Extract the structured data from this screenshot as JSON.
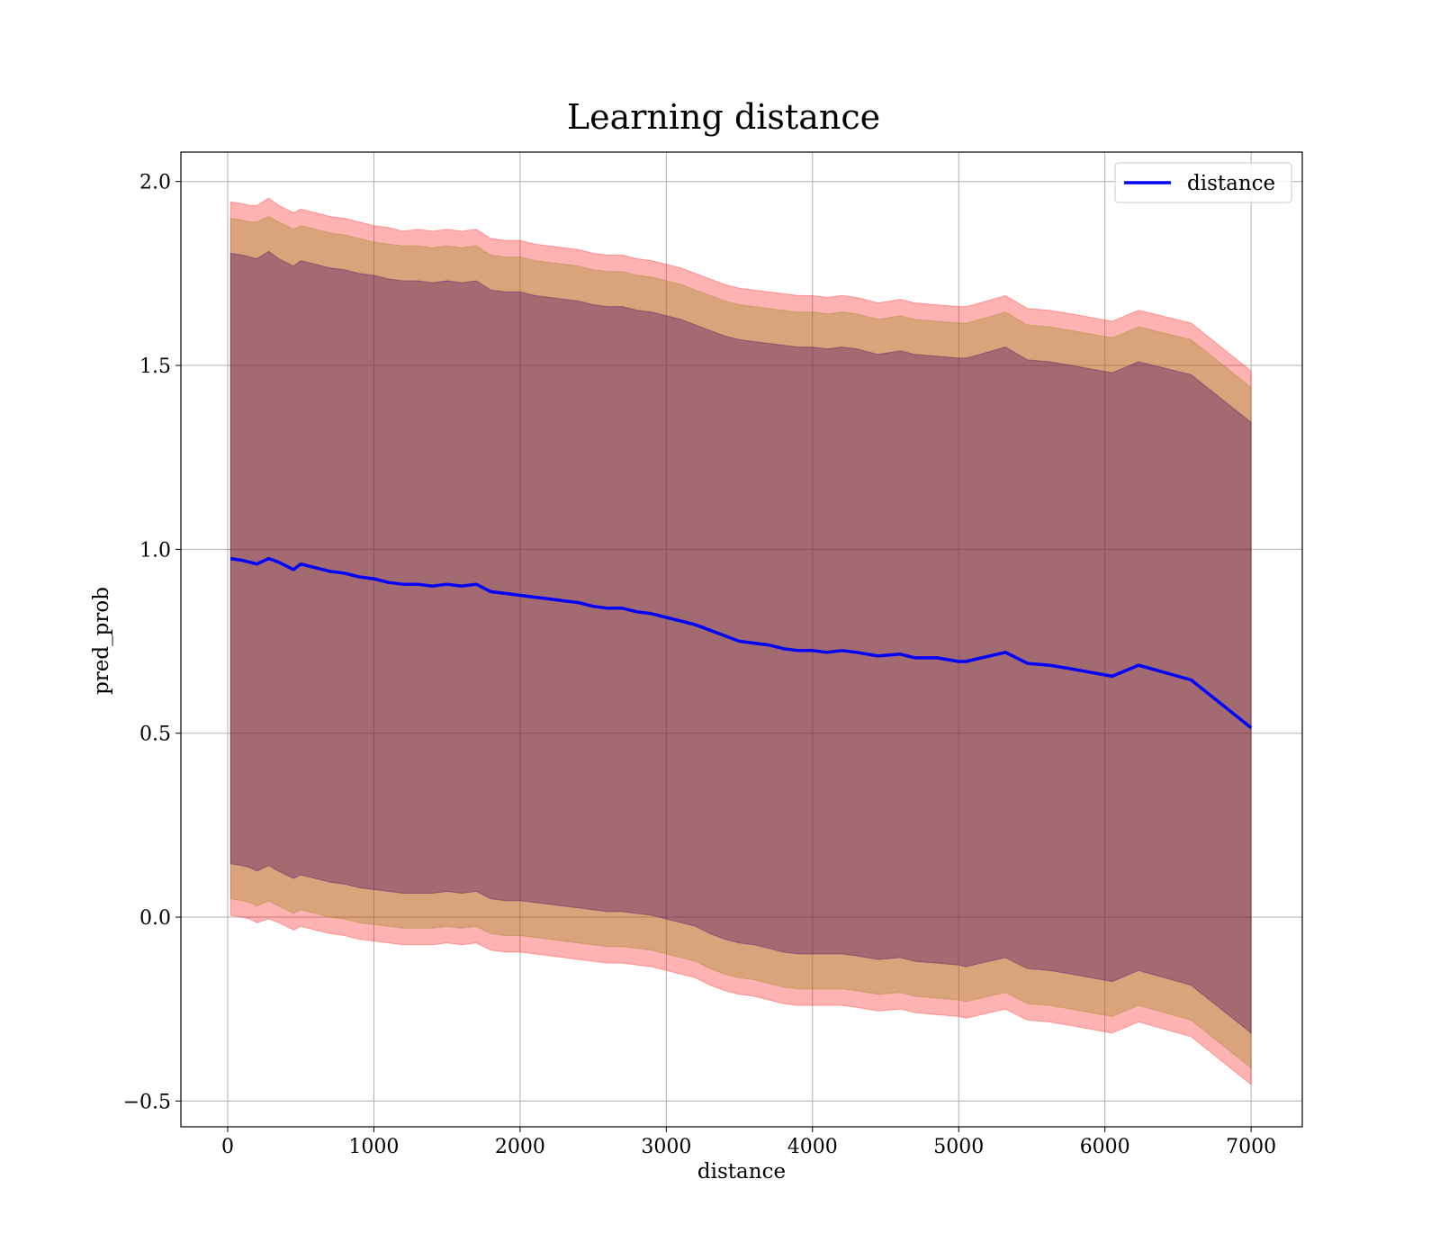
{
  "chart_data": {
    "type": "line",
    "title": "Learning distance",
    "xlabel": "distance",
    "ylabel": "pred_prob",
    "xlim": [
      -320,
      7350
    ],
    "ylim": [
      -0.57,
      2.08
    ],
    "xticks": [
      0,
      1000,
      2000,
      3000,
      4000,
      5000,
      6000,
      7000
    ],
    "xtick_labels": [
      "0",
      "1000",
      "2000",
      "3000",
      "4000",
      "5000",
      "6000",
      "7000"
    ],
    "yticks": [
      -0.5,
      0.0,
      0.5,
      1.0,
      1.5,
      2.0
    ],
    "ytick_labels": [
      "−0.5",
      "0.0",
      "0.5",
      "1.0",
      "1.5",
      "2.0"
    ],
    "grid": true,
    "legend": {
      "position": "top-right",
      "entries": [
        "distance"
      ]
    },
    "x": [
      20,
      100,
      150,
      200,
      280,
      350,
      400,
      450,
      500,
      600,
      700,
      800,
      900,
      1000,
      1100,
      1200,
      1300,
      1400,
      1500,
      1600,
      1700,
      1800,
      1900,
      2000,
      2100,
      2200,
      2300,
      2400,
      2500,
      2600,
      2700,
      2800,
      2900,
      3000,
      3100,
      3200,
      3300,
      3400,
      3500,
      3600,
      3700,
      3800,
      3900,
      4000,
      4100,
      4200,
      4300,
      4450,
      4600,
      4700,
      4850,
      5000,
      5050,
      5100,
      5320,
      5470,
      5620,
      5770,
      6050,
      6230,
      6590,
      7000
    ],
    "series": [
      {
        "name": "distance",
        "color": "#0000ff",
        "values": [
          0.975,
          0.97,
          0.965,
          0.96,
          0.975,
          0.965,
          0.955,
          0.945,
          0.96,
          0.95,
          0.94,
          0.935,
          0.925,
          0.92,
          0.91,
          0.905,
          0.905,
          0.9,
          0.905,
          0.9,
          0.905,
          0.885,
          0.88,
          0.875,
          0.87,
          0.865,
          0.86,
          0.855,
          0.845,
          0.84,
          0.84,
          0.83,
          0.825,
          0.815,
          0.805,
          0.795,
          0.78,
          0.765,
          0.75,
          0.745,
          0.74,
          0.73,
          0.725,
          0.725,
          0.72,
          0.725,
          0.72,
          0.71,
          0.715,
          0.705,
          0.705,
          0.695,
          0.695,
          0.7,
          0.72,
          0.69,
          0.685,
          0.675,
          0.655,
          0.685,
          0.645,
          0.515
        ]
      }
    ],
    "bands": [
      {
        "name": "outer",
        "color": "#ff0000",
        "opacity": 0.3,
        "upper": [
          1.945,
          1.94,
          1.935,
          1.935,
          1.955,
          1.935,
          1.925,
          1.915,
          1.925,
          1.915,
          1.905,
          1.9,
          1.89,
          1.88,
          1.875,
          1.865,
          1.87,
          1.865,
          1.87,
          1.865,
          1.87,
          1.845,
          1.84,
          1.84,
          1.83,
          1.825,
          1.82,
          1.815,
          1.805,
          1.8,
          1.8,
          1.79,
          1.785,
          1.775,
          1.765,
          1.75,
          1.735,
          1.72,
          1.71,
          1.705,
          1.7,
          1.695,
          1.69,
          1.69,
          1.685,
          1.69,
          1.685,
          1.67,
          1.68,
          1.67,
          1.665,
          1.66,
          1.66,
          1.665,
          1.69,
          1.655,
          1.65,
          1.64,
          1.62,
          1.65,
          1.615,
          1.485
        ],
        "lower": [
          0.005,
          0.0,
          -0.005,
          -0.015,
          -0.005,
          -0.015,
          -0.025,
          -0.035,
          -0.025,
          -0.035,
          -0.045,
          -0.05,
          -0.06,
          -0.065,
          -0.07,
          -0.075,
          -0.075,
          -0.075,
          -0.07,
          -0.075,
          -0.07,
          -0.09,
          -0.095,
          -0.095,
          -0.1,
          -0.105,
          -0.11,
          -0.115,
          -0.12,
          -0.125,
          -0.125,
          -0.13,
          -0.135,
          -0.145,
          -0.155,
          -0.165,
          -0.185,
          -0.2,
          -0.21,
          -0.215,
          -0.225,
          -0.235,
          -0.24,
          -0.24,
          -0.24,
          -0.24,
          -0.245,
          -0.255,
          -0.25,
          -0.26,
          -0.265,
          -0.27,
          -0.275,
          -0.27,
          -0.25,
          -0.28,
          -0.285,
          -0.295,
          -0.315,
          -0.285,
          -0.325,
          -0.455
        ]
      },
      {
        "name": "middle",
        "color": "#808000",
        "opacity": 0.3,
        "upper": [
          1.9,
          1.895,
          1.89,
          1.89,
          1.905,
          1.89,
          1.88,
          1.87,
          1.88,
          1.87,
          1.86,
          1.855,
          1.845,
          1.835,
          1.83,
          1.825,
          1.825,
          1.82,
          1.825,
          1.82,
          1.825,
          1.8,
          1.795,
          1.795,
          1.785,
          1.78,
          1.775,
          1.77,
          1.76,
          1.755,
          1.755,
          1.745,
          1.74,
          1.73,
          1.72,
          1.705,
          1.69,
          1.675,
          1.665,
          1.66,
          1.655,
          1.65,
          1.645,
          1.645,
          1.64,
          1.645,
          1.64,
          1.625,
          1.635,
          1.625,
          1.62,
          1.615,
          1.615,
          1.62,
          1.645,
          1.61,
          1.605,
          1.595,
          1.575,
          1.605,
          1.57,
          1.44
        ],
        "lower": [
          0.05,
          0.045,
          0.04,
          0.03,
          0.045,
          0.03,
          0.02,
          0.01,
          0.02,
          0.01,
          0.0,
          -0.005,
          -0.015,
          -0.02,
          -0.025,
          -0.03,
          -0.03,
          -0.03,
          -0.025,
          -0.03,
          -0.025,
          -0.045,
          -0.05,
          -0.05,
          -0.055,
          -0.06,
          -0.065,
          -0.07,
          -0.075,
          -0.08,
          -0.08,
          -0.085,
          -0.09,
          -0.1,
          -0.11,
          -0.12,
          -0.14,
          -0.155,
          -0.165,
          -0.17,
          -0.18,
          -0.19,
          -0.195,
          -0.195,
          -0.195,
          -0.195,
          -0.2,
          -0.21,
          -0.205,
          -0.215,
          -0.22,
          -0.225,
          -0.23,
          -0.225,
          -0.205,
          -0.235,
          -0.24,
          -0.25,
          -0.27,
          -0.24,
          -0.28,
          -0.41
        ]
      },
      {
        "name": "inner",
        "color": "#400060",
        "opacity": 0.35,
        "upper": [
          1.805,
          1.8,
          1.795,
          1.79,
          1.81,
          1.79,
          1.78,
          1.77,
          1.785,
          1.775,
          1.765,
          1.76,
          1.75,
          1.745,
          1.735,
          1.73,
          1.73,
          1.725,
          1.73,
          1.725,
          1.73,
          1.705,
          1.7,
          1.7,
          1.69,
          1.685,
          1.68,
          1.675,
          1.665,
          1.66,
          1.66,
          1.65,
          1.645,
          1.635,
          1.625,
          1.61,
          1.595,
          1.58,
          1.57,
          1.565,
          1.56,
          1.555,
          1.55,
          1.55,
          1.545,
          1.55,
          1.545,
          1.53,
          1.54,
          1.53,
          1.525,
          1.52,
          1.52,
          1.525,
          1.55,
          1.515,
          1.51,
          1.5,
          1.48,
          1.51,
          1.475,
          1.345
        ],
        "lower": [
          0.145,
          0.14,
          0.135,
          0.125,
          0.14,
          0.125,
          0.115,
          0.105,
          0.115,
          0.105,
          0.095,
          0.09,
          0.08,
          0.075,
          0.07,
          0.065,
          0.065,
          0.065,
          0.07,
          0.065,
          0.07,
          0.05,
          0.045,
          0.045,
          0.04,
          0.035,
          0.03,
          0.025,
          0.02,
          0.015,
          0.015,
          0.01,
          0.005,
          -0.005,
          -0.015,
          -0.025,
          -0.045,
          -0.06,
          -0.07,
          -0.075,
          -0.085,
          -0.095,
          -0.1,
          -0.1,
          -0.1,
          -0.1,
          -0.105,
          -0.115,
          -0.11,
          -0.12,
          -0.125,
          -0.13,
          -0.135,
          -0.13,
          -0.11,
          -0.14,
          -0.145,
          -0.155,
          -0.175,
          -0.145,
          -0.185,
          -0.315
        ]
      }
    ]
  }
}
